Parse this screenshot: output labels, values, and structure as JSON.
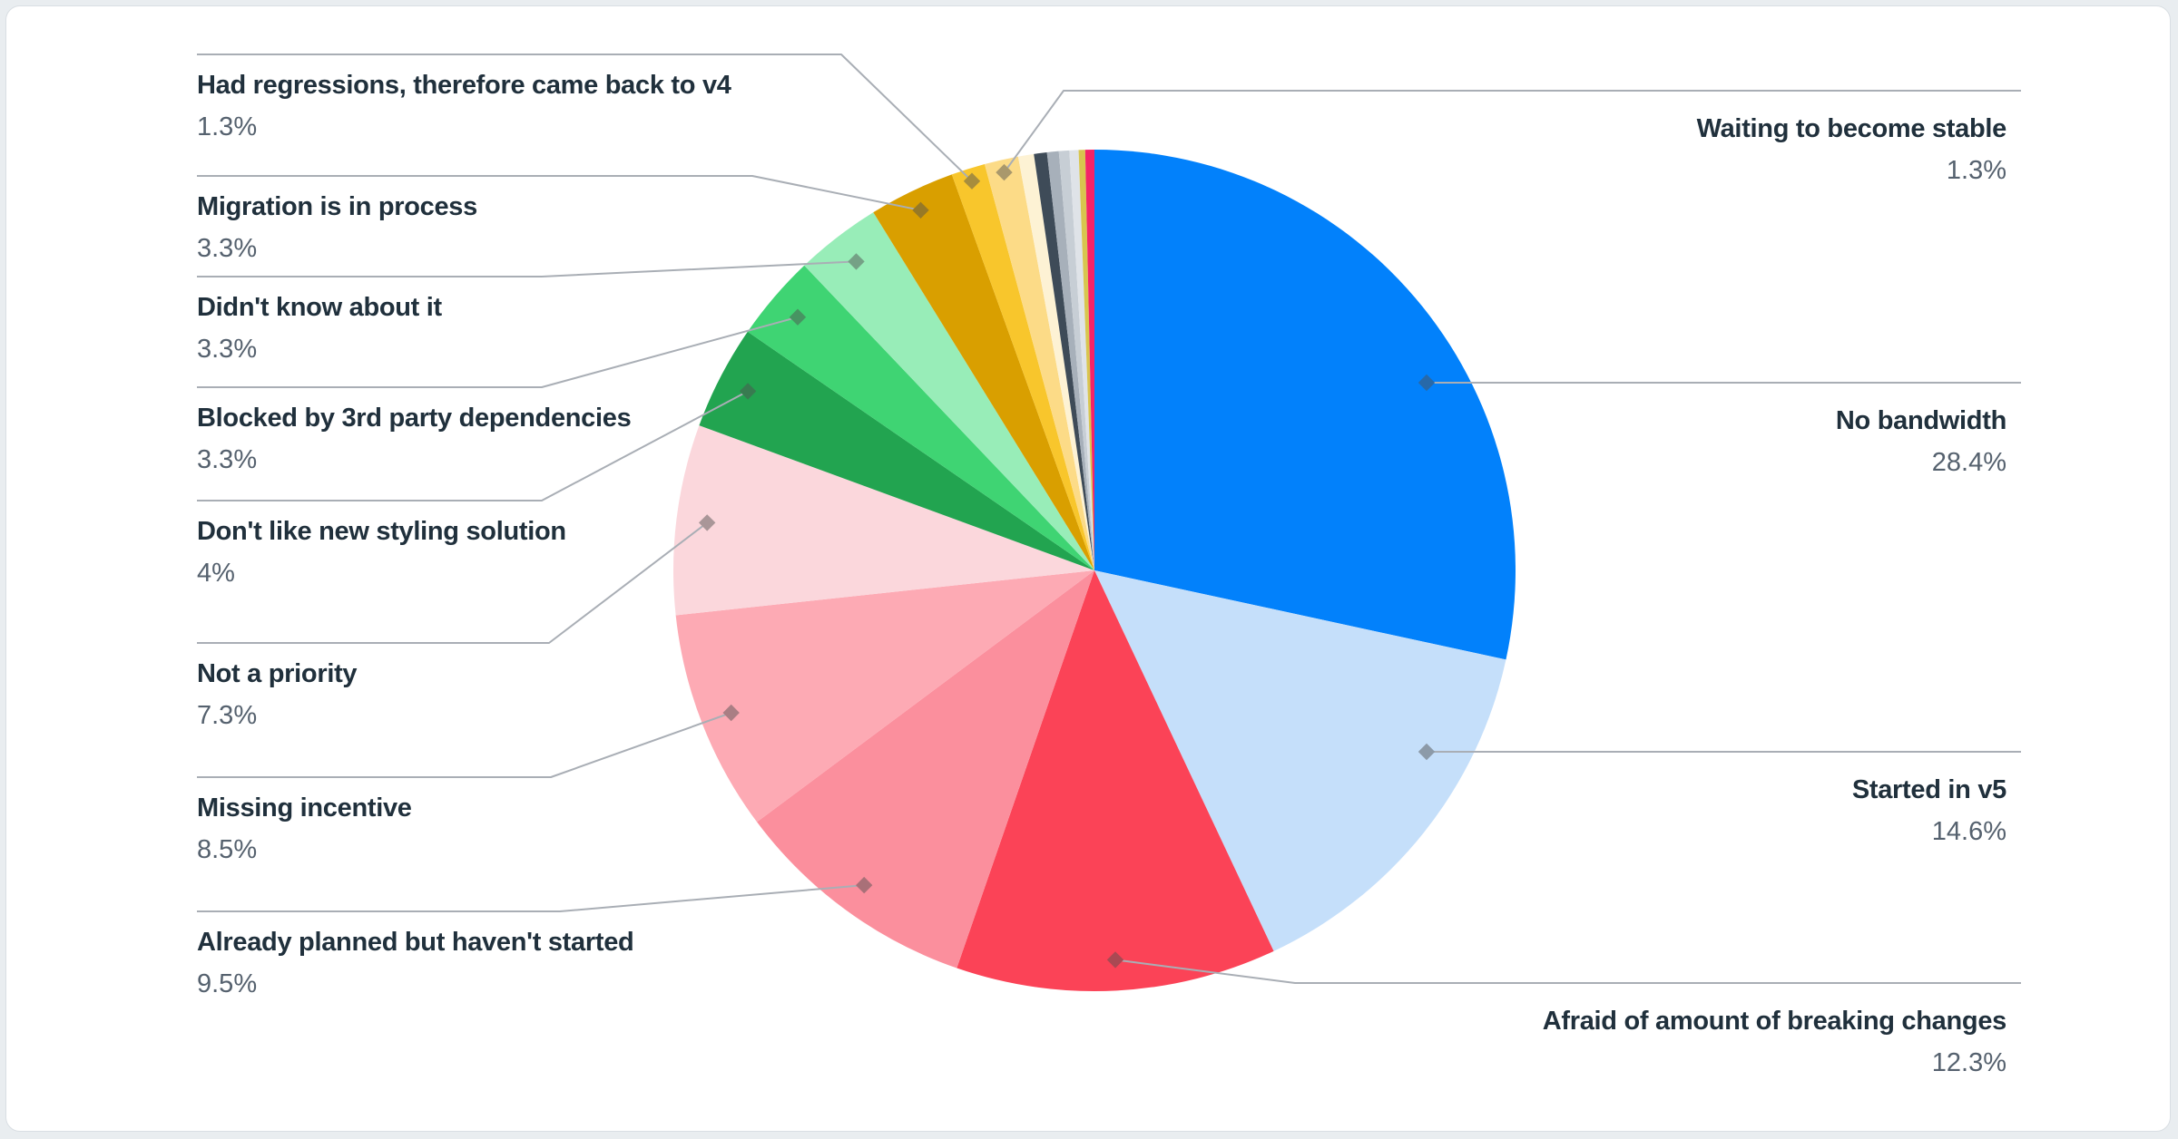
{
  "page": {
    "background_color": "#e9edf0",
    "card_color": "#ffffff",
    "leader_line_color": "#a9aeb5",
    "label_title_color": "#20303c",
    "label_percent_color": "#55616e"
  },
  "chart_data": {
    "type": "pie",
    "title": "",
    "legend_position": "none",
    "unit": "%",
    "start_angle_deg": 0,
    "direction": "clockwise",
    "slices": [
      {
        "label": "No bandwidth",
        "value": 28.4,
        "display": "28.4%",
        "color": "#0281fb",
        "side": "right"
      },
      {
        "label": "Started in v5",
        "value": 14.6,
        "display": "14.6%",
        "color": "#c5dffa",
        "side": "right"
      },
      {
        "label": "Afraid of amount of breaking changes",
        "value": 12.3,
        "display": "12.3%",
        "color": "#fb4357",
        "side": "right"
      },
      {
        "label": "Already planned but haven't started",
        "value": 9.5,
        "display": "9.5%",
        "color": "#fb8f9d",
        "side": "left"
      },
      {
        "label": "Missing incentive",
        "value": 8.5,
        "display": "8.5%",
        "color": "#fdaab4",
        "side": "left"
      },
      {
        "label": "Not a priority",
        "value": 7.3,
        "display": "7.3%",
        "color": "#fbd7dc",
        "side": "left"
      },
      {
        "label": "Don't like new styling solution",
        "value": 4,
        "display": "4%",
        "color": "#22a450",
        "side": "left"
      },
      {
        "label": "Blocked by 3rd party dependencies",
        "value": 3.3,
        "display": "3.3%",
        "color": "#3fd473",
        "side": "left"
      },
      {
        "label": "Didn't know about it",
        "value": 3.3,
        "display": "3.3%",
        "color": "#98edb8",
        "side": "left"
      },
      {
        "label": "Migration is in process",
        "value": 3.3,
        "display": "3.3%",
        "color": "#d99f00",
        "side": "left"
      },
      {
        "label": "Had regressions, therefore came back to v4",
        "value": 1.3,
        "display": "1.3%",
        "color": "#f8c62c",
        "side": "left"
      },
      {
        "label": "Waiting to become stable",
        "value": 1.3,
        "display": "1.3%",
        "color": "#fcdb87",
        "side": "right"
      },
      {
        "label": "",
        "value": 0.6,
        "display": "",
        "color": "#fdf2d4",
        "side": "none"
      },
      {
        "label": "",
        "value": 0.5,
        "display": "",
        "color": "#3e4b58",
        "side": "none"
      },
      {
        "label": "",
        "value": 0.45,
        "display": "",
        "color": "#a7b0ba",
        "side": "none"
      },
      {
        "label": "",
        "value": 0.4,
        "display": "",
        "color": "#c7ced5",
        "side": "none"
      },
      {
        "label": "",
        "value": 0.35,
        "display": "",
        "color": "#dfe3e8",
        "side": "none"
      },
      {
        "label": "",
        "value": 0.25,
        "display": "",
        "color": "#d8c54e",
        "side": "none"
      },
      {
        "label": "",
        "value": 0.35,
        "display": "",
        "color": "#f42368",
        "side": "none"
      }
    ]
  }
}
